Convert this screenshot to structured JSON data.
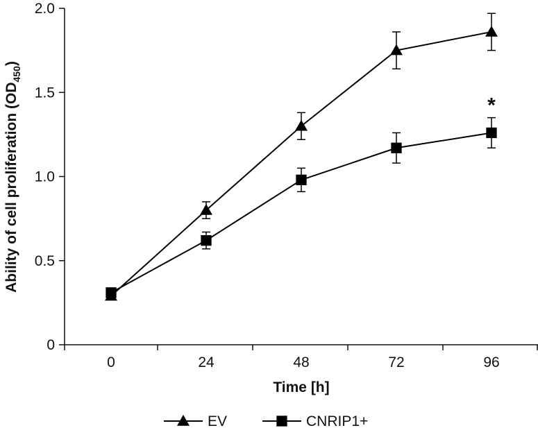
{
  "chart_data": {
    "type": "line",
    "xlabel": "Time [h]",
    "ylabel": "Ability of cell proliferation (OD",
    "ylabel_subscript": "450",
    "ylabel_suffix": ")",
    "x": [
      0,
      24,
      48,
      72,
      96
    ],
    "xlim": [
      0,
      96
    ],
    "ylim": [
      0,
      2.0
    ],
    "x_ticks": [
      "0",
      "24",
      "48",
      "72",
      "96"
    ],
    "y_ticks": [
      "0",
      "0.5",
      "1.0",
      "1.5",
      "2.0"
    ],
    "y_tick_values": [
      0,
      0.5,
      1.0,
      1.5,
      2.0
    ],
    "grid": false,
    "legend_position": "bottom",
    "series": [
      {
        "name": "EV",
        "marker": "triangle",
        "color": "#000000",
        "values": [
          0.29,
          0.8,
          1.3,
          1.75,
          1.86
        ],
        "errors": [
          0.01,
          0.05,
          0.08,
          0.11,
          0.11
        ]
      },
      {
        "name": "CNRIP1+",
        "marker": "square",
        "color": "#000000",
        "values": [
          0.31,
          0.62,
          0.98,
          1.17,
          1.26
        ],
        "errors": [
          0.01,
          0.05,
          0.07,
          0.09,
          0.09
        ]
      }
    ],
    "annotations": [
      {
        "text": "*",
        "x": 96,
        "series": "CNRIP1+"
      }
    ]
  }
}
